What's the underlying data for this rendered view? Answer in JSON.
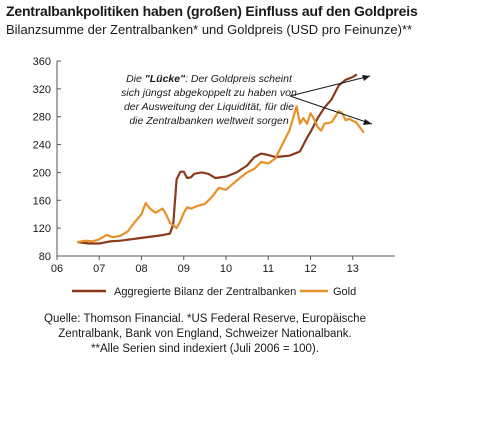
{
  "header": {
    "title": "Zentralbankpolitiken haben (großen) Einfluss auf den Goldpreis",
    "subtitle": "Bilanzsumme der Zentralbanken* und Goldpreis (USD pro Feinunze)**"
  },
  "annotation": {
    "line1_prefix": "Die ",
    "line1_bold": "\"Lücke\"",
    "line1_suffix": ": Der Goldpreis scheint",
    "line2": "sich jüngst abgekoppelt zu haben von",
    "line3": "der Ausweitung der Liquidität, für die",
    "line4": "die Zentralbanken weltweit sorgen"
  },
  "source": {
    "line1": "Quelle: Thomson Financial. *US Federal Reserve, Europäische",
    "line2": "Zentralbank, Bank von England, Schweizer Nationalbank.",
    "line3": "**Alle Serien sind indexiert (Juli 2006 = 100)."
  },
  "colors": {
    "balance": "#8b3a1c",
    "gold": "#e8902a",
    "axis": "#555555",
    "text": "#1a1a1a"
  },
  "chart_data": {
    "type": "line",
    "title": "Zentralbankpolitiken haben (großen) Einfluss auf den Goldpreis",
    "subtitle": "Bilanzsumme der Zentralbanken* und Goldpreis (USD pro Feinunze)**",
    "xlabel": "",
    "ylabel": "",
    "xlim": [
      2006,
      2014
    ],
    "ylim": [
      80,
      360
    ],
    "x_tick_labels": [
      "06",
      "07",
      "08",
      "09",
      "10",
      "11",
      "12",
      "13"
    ],
    "x_tick_values": [
      2006,
      2007,
      2008,
      2009,
      2010,
      2011,
      2012,
      2013
    ],
    "y_ticks": [
      80,
      120,
      160,
      200,
      240,
      280,
      320,
      360
    ],
    "grid": false,
    "legend_position": "bottom",
    "series": [
      {
        "name": "Aggregierte Bilanz der Zentralbanken",
        "color": "#8b3a1c",
        "points": [
          [
            2006.5,
            100
          ],
          [
            2006.75,
            98
          ],
          [
            2007.0,
            98
          ],
          [
            2007.25,
            101
          ],
          [
            2007.5,
            102
          ],
          [
            2007.75,
            104
          ],
          [
            2008.0,
            106
          ],
          [
            2008.25,
            108
          ],
          [
            2008.5,
            110
          ],
          [
            2008.67,
            112
          ],
          [
            2008.75,
            125
          ],
          [
            2008.83,
            190
          ],
          [
            2008.92,
            201
          ],
          [
            2009.0,
            201
          ],
          [
            2009.08,
            192
          ],
          [
            2009.17,
            193
          ],
          [
            2009.25,
            198
          ],
          [
            2009.42,
            200
          ],
          [
            2009.58,
            198
          ],
          [
            2009.75,
            192
          ],
          [
            2010.0,
            194
          ],
          [
            2010.25,
            200
          ],
          [
            2010.5,
            210
          ],
          [
            2010.67,
            222
          ],
          [
            2010.83,
            227
          ],
          [
            2011.0,
            225
          ],
          [
            2011.17,
            222
          ],
          [
            2011.33,
            223
          ],
          [
            2011.5,
            224
          ],
          [
            2011.75,
            230
          ],
          [
            2011.92,
            250
          ],
          [
            2012.0,
            258
          ],
          [
            2012.17,
            278
          ],
          [
            2012.33,
            293
          ],
          [
            2012.5,
            305
          ],
          [
            2012.67,
            325
          ],
          [
            2012.83,
            333
          ],
          [
            2013.0,
            337
          ],
          [
            2013.08,
            340
          ]
        ]
      },
      {
        "name": "Gold",
        "color": "#e8902a",
        "points": [
          [
            2006.5,
            100
          ],
          [
            2006.67,
            102
          ],
          [
            2006.83,
            101
          ],
          [
            2007.0,
            104
          ],
          [
            2007.17,
            110
          ],
          [
            2007.33,
            107
          ],
          [
            2007.5,
            109
          ],
          [
            2007.67,
            115
          ],
          [
            2007.83,
            128
          ],
          [
            2008.0,
            140
          ],
          [
            2008.1,
            156
          ],
          [
            2008.2,
            148
          ],
          [
            2008.33,
            142
          ],
          [
            2008.5,
            148
          ],
          [
            2008.58,
            140
          ],
          [
            2008.67,
            128
          ],
          [
            2008.75,
            124
          ],
          [
            2008.83,
            120
          ],
          [
            2008.92,
            130
          ],
          [
            2009.0,
            142
          ],
          [
            2009.08,
            150
          ],
          [
            2009.17,
            148
          ],
          [
            2009.33,
            152
          ],
          [
            2009.5,
            155
          ],
          [
            2009.67,
            165
          ],
          [
            2009.83,
            178
          ],
          [
            2010.0,
            175
          ],
          [
            2010.17,
            184
          ],
          [
            2010.33,
            192
          ],
          [
            2010.5,
            200
          ],
          [
            2010.67,
            205
          ],
          [
            2010.83,
            215
          ],
          [
            2011.0,
            213
          ],
          [
            2011.17,
            220
          ],
          [
            2011.33,
            240
          ],
          [
            2011.5,
            260
          ],
          [
            2011.67,
            295
          ],
          [
            2011.75,
            270
          ],
          [
            2011.83,
            278
          ],
          [
            2011.92,
            270
          ],
          [
            2012.0,
            285
          ],
          [
            2012.08,
            277
          ],
          [
            2012.17,
            265
          ],
          [
            2012.25,
            260
          ],
          [
            2012.33,
            270
          ],
          [
            2012.5,
            272
          ],
          [
            2012.67,
            288
          ],
          [
            2012.75,
            285
          ],
          [
            2012.83,
            275
          ],
          [
            2012.92,
            277
          ],
          [
            2013.0,
            274
          ],
          [
            2013.08,
            272
          ],
          [
            2013.17,
            265
          ],
          [
            2013.25,
            258
          ]
        ]
      }
    ]
  }
}
